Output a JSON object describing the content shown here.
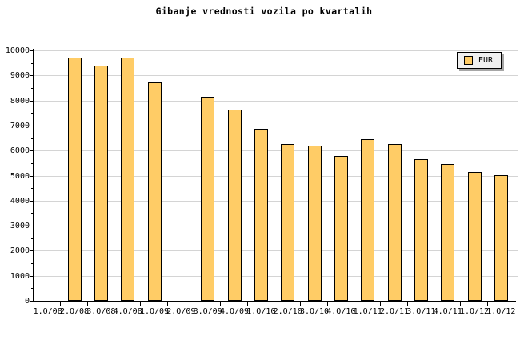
{
  "title": "Gibanje vrednosti vozila po kvartalih",
  "legend": {
    "label": "EUR"
  },
  "colors": {
    "bar_fill": "#FFCC66",
    "bar_border": "#000000",
    "grid": "#D4D4D4",
    "axis": "#000000",
    "legend_bg": "#F0F0F0",
    "legend_shadow": "#A6A6A6",
    "background": "#FFFFFF"
  },
  "chart_data": {
    "type": "bar",
    "title": "Gibanje vrednosti vozila po kvartalih",
    "categories": [
      "1.Q/08",
      "2.Q/08",
      "3.Q/08",
      "4.Q/08",
      "1.Q/09",
      "2.Q/09",
      "3.Q/09",
      "4.Q/09",
      "1.Q/10",
      "2.Q/10",
      "3.Q/10",
      "4.Q/10",
      "1.Q/11",
      "2.Q/11",
      "3.Q/11",
      "4.Q/11",
      "1.Q/12",
      "1.Q/12"
    ],
    "series": [
      {
        "name": "EUR",
        "values": [
          null,
          9700,
          9400,
          9700,
          8730,
          null,
          8150,
          7620,
          6880,
          6270,
          6200,
          5790,
          6450,
          6270,
          5660,
          5470,
          5140,
          5020
        ]
      }
    ],
    "xlabel": "",
    "ylabel": "",
    "ylim": [
      0,
      10000
    ],
    "ytick_step": 1000,
    "ytick_minor_step": 500,
    "grid": "horizontal-major",
    "legend_position": "top-right"
  }
}
